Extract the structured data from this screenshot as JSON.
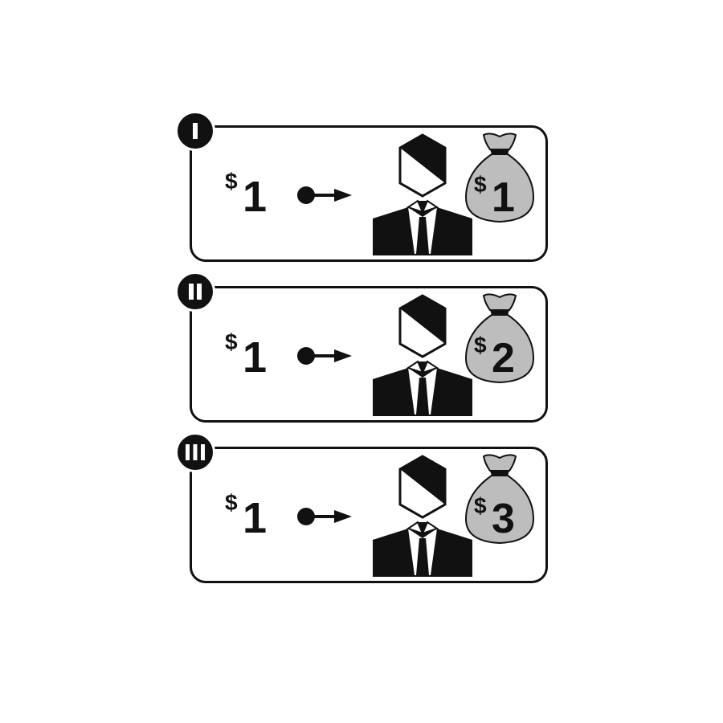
{
  "colors": {
    "ink": "#111111",
    "bag_fill": "#bdbdbd",
    "background": "#ffffff"
  },
  "panels": [
    {
      "step_numeral": "I",
      "input": {
        "currency": "$",
        "amount": "1"
      },
      "recipient_icon": "businessman-icon",
      "result": {
        "icon": "money-bag-icon",
        "currency": "$",
        "amount": "1"
      }
    },
    {
      "step_numeral": "II",
      "input": {
        "currency": "$",
        "amount": "1"
      },
      "recipient_icon": "businessman-icon",
      "result": {
        "icon": "money-bag-icon",
        "currency": "$",
        "amount": "2"
      }
    },
    {
      "step_numeral": "III",
      "input": {
        "currency": "$",
        "amount": "1"
      },
      "recipient_icon": "businessman-icon",
      "result": {
        "icon": "money-bag-icon",
        "currency": "$",
        "amount": "3"
      }
    }
  ]
}
